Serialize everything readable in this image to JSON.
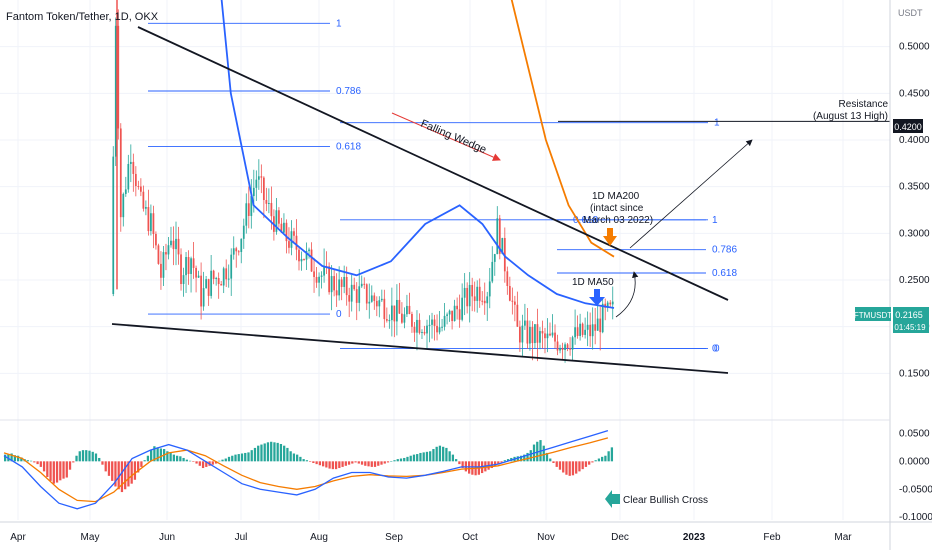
{
  "chart_data": {
    "type": "candlestick",
    "title": "Fantom Token/Tether, 1D, OKX",
    "currency": "USDT",
    "x_ticks": [
      "Apr",
      "May",
      "Jun",
      "Jul",
      "Aug",
      "Sep",
      "Oct",
      "Nov",
      "Dec",
      "2023",
      "Feb",
      "Mar"
    ],
    "price_ticks": [
      "0.5000",
      "0.4500",
      "0.4000",
      "0.3500",
      "0.3000",
      "0.2500",
      "0.2000",
      "0.1500"
    ],
    "price_ylim": [
      0.1,
      0.55
    ],
    "last_price": {
      "symbol": "FTMUSDT",
      "value": "0.2165",
      "countdown": "01:45:19"
    },
    "resistance": {
      "value": "0.4200",
      "label_line1": "Resistance",
      "label_line2": "(August 13 High)"
    },
    "annotations": {
      "falling_wedge": "Falling Wedge",
      "ma200_line1": "1D MA200",
      "ma200_line2": "(intact since",
      "ma200_line3": "March 03 2022)",
      "ma50": "1D MA50",
      "bullish_cross": "Clear Bullish Cross"
    },
    "fib_sets": [
      {
        "levels": [
          "1",
          "0.786",
          "0.618",
          "0"
        ],
        "prices": [
          0.525,
          0.4525,
          0.393,
          0.2135
        ]
      },
      {
        "levels": [
          "1",
          "0.618",
          "0"
        ],
        "prices": [
          0.4185,
          0.3145,
          0.1765
        ]
      },
      {
        "levels": [
          "1",
          "0.786",
          "0.618",
          "0"
        ],
        "prices": [
          0.3145,
          0.2825,
          0.2575,
          0.1765
        ]
      }
    ],
    "series": [
      {
        "name": "1D MA200",
        "values": [
          [
            0.0,
            0.92
          ],
          [
            0.1,
            0.74
          ],
          [
            0.2,
            0.6
          ],
          [
            0.3,
            0.5
          ],
          [
            0.4,
            0.4
          ],
          [
            0.5,
            0.33
          ],
          [
            0.6,
            0.29
          ],
          [
            0.7,
            0.275
          ]
        ]
      },
      {
        "name": "1D MA50",
        "values": [
          [
            0.0,
            0.95
          ],
          [
            0.04,
            0.7
          ],
          [
            0.08,
            0.45
          ],
          [
            0.12,
            0.33
          ],
          [
            0.18,
            0.295
          ],
          [
            0.24,
            0.265
          ],
          [
            0.3,
            0.255
          ],
          [
            0.36,
            0.27
          ],
          [
            0.42,
            0.31
          ],
          [
            0.48,
            0.33
          ],
          [
            0.52,
            0.31
          ],
          [
            0.56,
            0.275
          ],
          [
            0.6,
            0.255
          ],
          [
            0.65,
            0.235
          ],
          [
            0.7,
            0.225
          ],
          [
            0.75,
            0.22
          ]
        ]
      }
    ],
    "macd_ticks": [
      "0.0500",
      "0.0000",
      "-0.0500",
      "-0.1000"
    ],
    "macd_ylim": [
      -0.105,
      0.065
    ],
    "macd_histogram": [
      0.012,
      0.013,
      0.014,
      0.011,
      0.01,
      0.007,
      0.004,
      0.002,
      0.001,
      -0.002,
      -0.005,
      -0.01,
      -0.018,
      -0.028,
      -0.035,
      -0.04,
      -0.038,
      -0.034,
      -0.031,
      -0.029,
      -0.015,
      -0.002,
      0.01,
      0.018,
      0.02,
      0.02,
      0.019,
      0.017,
      0.014,
      0.006,
      -0.006,
      -0.018,
      -0.026,
      -0.035,
      -0.045,
      -0.05,
      -0.055,
      -0.05,
      -0.045,
      -0.04,
      -0.033,
      -0.02,
      -0.01,
      0.002,
      0.01,
      0.02,
      0.027,
      0.025,
      0.023,
      0.022,
      0.018,
      0.015,
      0.012,
      0.01,
      0.009,
      0.006,
      0.003,
      0.001,
      -0.001,
      -0.004,
      -0.008,
      -0.012,
      -0.01,
      -0.008,
      -0.006,
      -0.004,
      0.001,
      0.003,
      0.005,
      0.008,
      0.01,
      0.012,
      0.013,
      0.014,
      0.015,
      0.016,
      0.02,
      0.024,
      0.028,
      0.03,
      0.032,
      0.034,
      0.035,
      0.034,
      0.033,
      0.031,
      0.028,
      0.024,
      0.018,
      0.014,
      0.012,
      0.008,
      0.004,
      0.002,
      -0.001,
      -0.003,
      -0.005,
      -0.007,
      -0.009,
      -0.011,
      -0.013,
      -0.014,
      -0.014,
      -0.012,
      -0.01,
      -0.008,
      -0.006,
      -0.004,
      -0.002,
      -0.004,
      -0.006,
      -0.008,
      -0.009,
      -0.01,
      -0.01,
      -0.008,
      -0.006,
      -0.004,
      -0.002,
      0.0,
      0.002,
      0.004,
      0.005,
      0.006,
      0.008,
      0.01,
      0.012,
      0.013,
      0.015,
      0.016,
      0.017,
      0.018,
      0.022,
      0.026,
      0.028,
      0.026,
      0.024,
      0.018,
      0.012,
      0.004,
      -0.005,
      -0.012,
      -0.018,
      -0.022,
      -0.024,
      -0.025,
      -0.024,
      -0.021,
      -0.018,
      -0.015,
      -0.012,
      -0.009,
      -0.005,
      -0.002,
      0.002,
      0.004,
      0.006,
      0.008,
      0.009,
      0.01,
      0.012,
      0.015,
      0.02,
      0.03,
      0.035,
      0.038,
      0.028,
      0.015,
      0.005,
      -0.003,
      -0.01,
      -0.015,
      -0.02,
      -0.024,
      -0.026,
      -0.025,
      -0.022,
      -0.018,
      -0.014,
      -0.01,
      -0.006,
      -0.002,
      0.002,
      0.005,
      0.008,
      0.01,
      0.018,
      0.025
    ],
    "macd_line": [
      [
        0.0,
        0.01
      ],
      [
        0.03,
        -0.01
      ],
      [
        0.06,
        -0.045
      ],
      [
        0.09,
        -0.075
      ],
      [
        0.12,
        -0.085
      ],
      [
        0.15,
        -0.075
      ],
      [
        0.18,
        -0.04
      ],
      [
        0.21,
        0.005
      ],
      [
        0.24,
        0.02
      ],
      [
        0.27,
        0.03
      ],
      [
        0.3,
        0.02
      ],
      [
        0.33,
        0.0
      ],
      [
        0.36,
        -0.02
      ],
      [
        0.39,
        -0.04
      ],
      [
        0.42,
        -0.05
      ],
      [
        0.45,
        -0.055
      ],
      [
        0.48,
        -0.06
      ],
      [
        0.51,
        -0.05
      ],
      [
        0.54,
        -0.03
      ],
      [
        0.57,
        -0.02
      ],
      [
        0.6,
        -0.02
      ],
      [
        0.63,
        -0.028
      ],
      [
        0.66,
        -0.03
      ],
      [
        0.69,
        -0.025
      ],
      [
        0.72,
        -0.018
      ],
      [
        0.75,
        -0.01
      ],
      [
        0.78,
        -0.01
      ],
      [
        0.81,
        -0.005
      ],
      [
        0.84,
        0.005
      ],
      [
        0.87,
        0.015
      ],
      [
        0.9,
        0.025
      ],
      [
        0.93,
        0.035
      ],
      [
        0.96,
        0.045
      ],
      [
        0.99,
        0.055
      ]
    ],
    "signal_line": [
      [
        0.0,
        0.015
      ],
      [
        0.03,
        0.005
      ],
      [
        0.06,
        -0.02
      ],
      [
        0.09,
        -0.05
      ],
      [
        0.12,
        -0.07
      ],
      [
        0.15,
        -0.072
      ],
      [
        0.18,
        -0.055
      ],
      [
        0.21,
        -0.025
      ],
      [
        0.24,
        0.0
      ],
      [
        0.27,
        0.015
      ],
      [
        0.3,
        0.02
      ],
      [
        0.33,
        0.01
      ],
      [
        0.36,
        -0.008
      ],
      [
        0.39,
        -0.025
      ],
      [
        0.42,
        -0.038
      ],
      [
        0.45,
        -0.045
      ],
      [
        0.48,
        -0.05
      ],
      [
        0.51,
        -0.045
      ],
      [
        0.54,
        -0.035
      ],
      [
        0.57,
        -0.027
      ],
      [
        0.6,
        -0.024
      ],
      [
        0.63,
        -0.026
      ],
      [
        0.66,
        -0.027
      ],
      [
        0.69,
        -0.025
      ],
      [
        0.72,
        -0.02
      ],
      [
        0.75,
        -0.014
      ],
      [
        0.78,
        -0.012
      ],
      [
        0.81,
        -0.008
      ],
      [
        0.84,
        0.0
      ],
      [
        0.87,
        0.008
      ],
      [
        0.9,
        0.016
      ],
      [
        0.93,
        0.025
      ],
      [
        0.96,
        0.033
      ],
      [
        0.99,
        0.042
      ]
    ]
  }
}
